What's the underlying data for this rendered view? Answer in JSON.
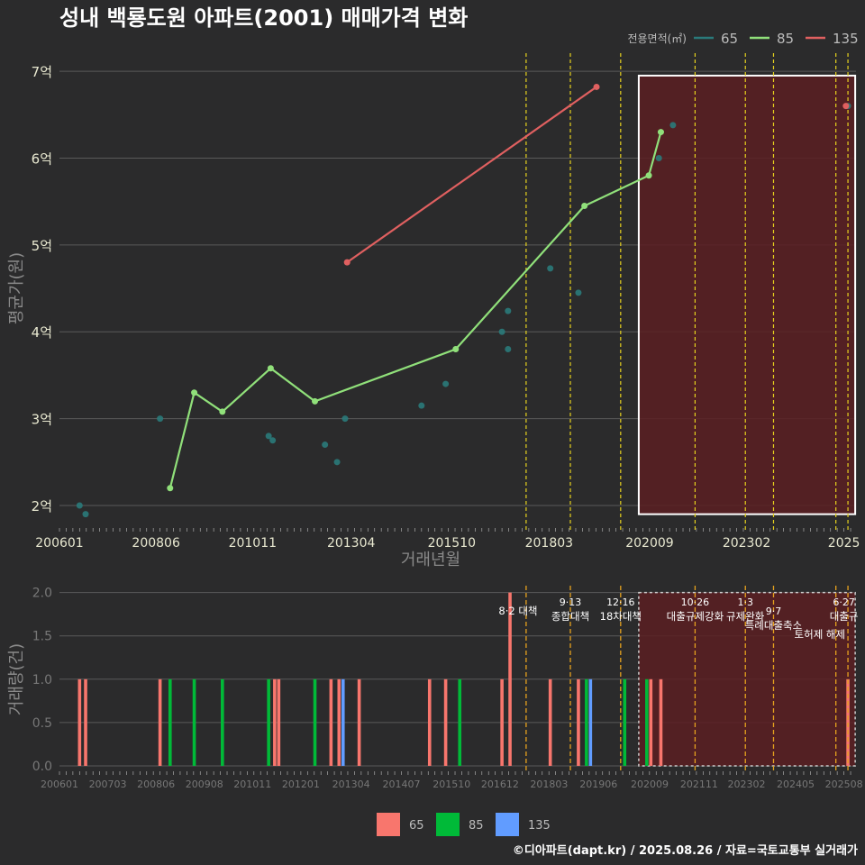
{
  "title": "성내 백룡도원 아파트(2001) 매매가격 변화",
  "footer": "©디아파트(dapt.kr) / 2025.08.26 / 자료=국토교통부 실거래가",
  "colors": {
    "bg": "#2b2b2c",
    "grid": "#5a5a5a",
    "s65": "#2a7a7a",
    "s85": "#90e07a",
    "s135": "#e06060",
    "bar65": "#f8766d",
    "bar85": "#00ba38",
    "bar135": "#619cff",
    "vline": "#e6d21e",
    "highlight": "#5a1e22"
  },
  "chart_data": [
    {
      "type": "line",
      "title": "성내 백룡도원 아파트(2001) 매매가격 변화",
      "xlabel": "거래년월",
      "ylabel": "평균가(원)",
      "xlim": [
        2006.0,
        2025.8
      ],
      "ylim": [
        1.72,
        7.25
      ],
      "yticks": [
        2,
        3,
        4,
        5,
        6,
        7
      ],
      "ytick_labels": [
        "2억",
        "3억",
        "4억",
        "5억",
        "6억",
        "7억"
      ],
      "xticks": [
        2006.0,
        2008.4,
        2010.8,
        2013.25,
        2015.75,
        2018.17,
        2020.67,
        2023.08,
        2025.5
      ],
      "xtick_labels": [
        "200601",
        "200806",
        "201011",
        "201304",
        "201510",
        "201803",
        "202009",
        "202302",
        "2025"
      ],
      "legend_title": "전용면적(㎡)",
      "legend": [
        "65",
        "85",
        "135"
      ],
      "series": [
        {
          "name": "65",
          "mode": "points",
          "points": [
            [
              2006.5,
              2.0
            ],
            [
              2006.65,
              1.9
            ],
            [
              2008.5,
              3.0
            ],
            [
              2011.2,
              2.8
            ],
            [
              2011.3,
              2.75
            ],
            [
              2012.6,
              2.7
            ],
            [
              2012.9,
              2.5
            ],
            [
              2013.1,
              3.0
            ],
            [
              2015.0,
              3.15
            ],
            [
              2015.6,
              3.4
            ],
            [
              2017.0,
              4.0
            ],
            [
              2017.15,
              4.24
            ],
            [
              2017.15,
              3.8
            ],
            [
              2018.2,
              4.73
            ],
            [
              2018.9,
              4.45
            ],
            [
              2020.9,
              6.0
            ],
            [
              2021.25,
              6.38
            ],
            [
              2025.6,
              6.6
            ]
          ]
        },
        {
          "name": "85",
          "mode": "line",
          "points": [
            [
              2008.75,
              2.2
            ],
            [
              2009.35,
              3.3
            ],
            [
              2010.05,
              3.08
            ],
            [
              2011.25,
              3.58
            ],
            [
              2012.35,
              3.2
            ],
            [
              2015.85,
              3.8
            ],
            [
              2019.05,
              5.45
            ],
            [
              2020.65,
              5.8
            ],
            [
              2020.95,
              6.3
            ]
          ]
        },
        {
          "name": "135",
          "mode": "line",
          "points": [
            [
              2013.15,
              4.8
            ],
            [
              2019.35,
              6.82
            ],
            [
              2025.55,
              6.6
            ]
          ]
        }
      ],
      "event_lines": [
        2017.6,
        2018.7,
        2019.95,
        2021.8,
        2023.05,
        2023.75,
        2025.3,
        2025.6
      ],
      "highlight_range": [
        2020.4,
        2025.78
      ]
    },
    {
      "type": "bar",
      "ylabel": "거래량(건)",
      "ylim": [
        0,
        2.1
      ],
      "yticks": [
        0,
        0.5,
        1.0,
        1.5,
        2.0
      ],
      "ytick_labels": [
        "0.0",
        "0.5",
        "1.0",
        "1.5",
        "2.0"
      ],
      "xticks": [
        2006.0,
        2007.2,
        2008.4,
        2009.6,
        2010.8,
        2012.0,
        2013.25,
        2014.5,
        2015.75,
        2016.95,
        2018.17,
        2019.4,
        2020.67,
        2021.9,
        2023.08,
        2024.3,
        2025.5
      ],
      "xtick_labels": [
        "200601",
        "200703",
        "200806",
        "200908",
        "201011",
        "201201",
        "201304",
        "201407",
        "201510",
        "201612",
        "201803",
        "201906",
        "202009",
        "202111",
        "202302",
        "202405",
        "202508"
      ],
      "bars": [
        {
          "x": 2006.5,
          "value": 1,
          "series": "65"
        },
        {
          "x": 2006.65,
          "value": 1,
          "series": "65"
        },
        {
          "x": 2008.5,
          "value": 1,
          "series": "65"
        },
        {
          "x": 2008.75,
          "value": 1,
          "series": "85"
        },
        {
          "x": 2009.35,
          "value": 1,
          "series": "85"
        },
        {
          "x": 2010.05,
          "value": 1,
          "series": "85"
        },
        {
          "x": 2011.2,
          "value": 1,
          "series": "85"
        },
        {
          "x": 2011.35,
          "value": 1,
          "series": "65"
        },
        {
          "x": 2011.45,
          "value": 1,
          "series": "65"
        },
        {
          "x": 2012.35,
          "value": 1,
          "series": "85"
        },
        {
          "x": 2012.75,
          "value": 1,
          "series": "65"
        },
        {
          "x": 2012.95,
          "value": 1,
          "series": "65"
        },
        {
          "x": 2013.05,
          "value": 1,
          "series": "135"
        },
        {
          "x": 2013.45,
          "value": 1,
          "series": "65"
        },
        {
          "x": 2015.2,
          "value": 1,
          "series": "65"
        },
        {
          "x": 2015.6,
          "value": 1,
          "series": "65"
        },
        {
          "x": 2015.95,
          "value": 1,
          "series": "85"
        },
        {
          "x": 2017.0,
          "value": 1,
          "series": "65"
        },
        {
          "x": 2017.2,
          "value": 2,
          "series": "65"
        },
        {
          "x": 2018.2,
          "value": 1,
          "series": "65"
        },
        {
          "x": 2018.9,
          "value": 1,
          "series": "65"
        },
        {
          "x": 2019.1,
          "value": 1,
          "series": "85"
        },
        {
          "x": 2019.2,
          "value": 1,
          "series": "135"
        },
        {
          "x": 2020.05,
          "value": 1,
          "series": "85"
        },
        {
          "x": 2020.6,
          "value": 1,
          "series": "85"
        },
        {
          "x": 2020.7,
          "value": 1,
          "series": "65"
        },
        {
          "x": 2020.95,
          "value": 1,
          "series": "65"
        },
        {
          "x": 2025.6,
          "value": 1,
          "series": "65"
        }
      ],
      "event_lines": [
        2017.6,
        2018.7,
        2019.95,
        2021.8,
        2023.05,
        2023.75,
        2025.3,
        2025.6
      ],
      "annotations": [
        {
          "x": 2017.4,
          "level": 2,
          "lines": [
            "8·2 대책"
          ]
        },
        {
          "x": 2018.7,
          "level": 1,
          "lines": [
            "9·13",
            "종합대책"
          ]
        },
        {
          "x": 2019.95,
          "level": 1,
          "lines": [
            "12·16",
            "18차대책"
          ]
        },
        {
          "x": 2021.8,
          "level": 1,
          "lines": [
            "10·26",
            "대출규제강화"
          ]
        },
        {
          "x": 2023.05,
          "level": 1,
          "lines": [
            "1·3",
            "규제완화"
          ]
        },
        {
          "x": 2023.75,
          "level": 2,
          "lines": [
            "9·7",
            "특례대출축소"
          ]
        },
        {
          "x": 2024.9,
          "level": 3,
          "lines": [
            "토허제 해제"
          ]
        },
        {
          "x": 2025.5,
          "level": 1,
          "lines": [
            "6·27",
            "대출규"
          ]
        }
      ],
      "legend": [
        "65",
        "85",
        "135"
      ],
      "highlight_range": [
        2020.4,
        2025.78
      ]
    }
  ]
}
